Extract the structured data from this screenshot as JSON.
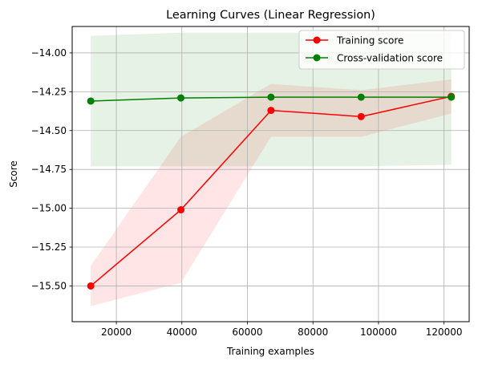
{
  "chart_data": {
    "type": "line",
    "title": "Learning Curves (Linear Regression)",
    "xlabel": "Training examples",
    "ylabel": "Score",
    "xlim": [
      6530,
      127670
    ],
    "ylim": [
      -15.73,
      -13.83
    ],
    "x_ticks": [
      20000,
      40000,
      60000,
      80000,
      100000,
      120000
    ],
    "x_tick_labels": [
      "20000",
      "40000",
      "60000",
      "80000",
      "100000",
      "120000"
    ],
    "y_ticks": [
      -14.0,
      -14.25,
      -14.5,
      -14.75,
      -15.0,
      -15.25,
      -15.5
    ],
    "y_tick_labels": [
      "−14.00",
      "−14.25",
      "−14.50",
      "−14.75",
      "−15.00",
      "−15.25",
      "−15.50"
    ],
    "grid": true,
    "legend_position": "top-right",
    "x": [
      12200,
      39700,
      67200,
      94700,
      122200
    ],
    "series": [
      {
        "name": "Training score",
        "color": "#ff0000",
        "values": [
          -15.5,
          -15.01,
          -14.37,
          -14.41,
          -14.28
        ],
        "band_upper": [
          -15.37,
          -14.54,
          -14.2,
          -14.24,
          -14.17
        ],
        "band_lower": [
          -15.63,
          -15.48,
          -14.54,
          -14.54,
          -14.39
        ],
        "band_color": "#ff0000"
      },
      {
        "name": "Cross-validation score",
        "color": "#008000",
        "values": [
          -14.31,
          -14.29,
          -14.285,
          -14.285,
          -14.285
        ],
        "band_upper": [
          -13.89,
          -13.87,
          -13.87,
          -13.87,
          -13.87
        ],
        "band_lower": [
          -14.73,
          -14.73,
          -14.73,
          -14.73,
          -14.72
        ],
        "band_color": "#008000"
      }
    ]
  }
}
